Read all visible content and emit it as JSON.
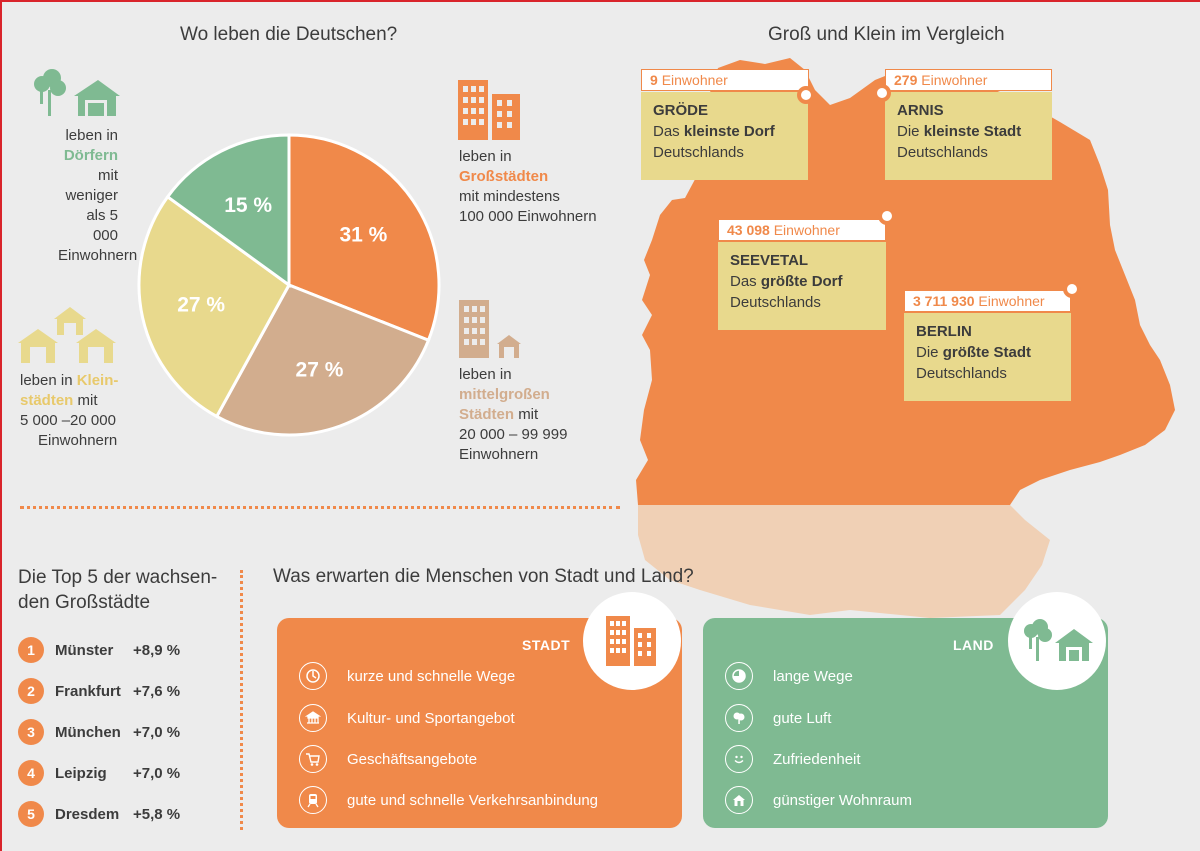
{
  "titles": {
    "pie": "Wo leben die Deutschen?",
    "map": "Groß und Klein im Vergleich",
    "top5": "Die Top 5 der wachsen-den Großstädte",
    "compare": "Was erwarten die Menschen von Stadt und Land?"
  },
  "pie_annotations": {
    "doerfer": {
      "pre": "leben in",
      "key": "Dörfern",
      "post": "mit",
      "l3": "weniger",
      "l4": "als 5 000",
      "l5": "Einwohnern"
    },
    "grossstaedte": {
      "pre": "leben in",
      "key": "Großstädten",
      "l3": "mit mindestens",
      "l4": "100 000 Einwohnern"
    },
    "kleinstaedte": {
      "pre": "leben in",
      "key1": "Klein-",
      "key2": "städten",
      "post": "mit",
      "l3": "5 000 –20 000",
      "l4": "Einwohnern"
    },
    "mittel": {
      "pre": "leben in",
      "key1": "mittelgroßen",
      "key2": "Städten",
      "post": "mit",
      "l3": "20 000 – 99 999",
      "l4": "Einwohnern"
    }
  },
  "chart_data": {
    "type": "pie",
    "title": "Wo leben die Deutschen?",
    "categories": [
      "Großstädte",
      "mittelgroße Städte",
      "Kleinstädte",
      "Dörfer"
    ],
    "values": [
      31,
      27,
      27,
      15
    ],
    "labels": [
      "31 %",
      "27 %",
      "27 %",
      "15 %"
    ],
    "colors": [
      "#f0894a",
      "#d2ad8e",
      "#e8d98d",
      "#7fba92"
    ]
  },
  "map": {
    "places": [
      {
        "pop_num": "9",
        "pop_word": "Einwohner",
        "name": "GRÖDE",
        "line_pre": "Das",
        "line_key": "kleinste Dorf",
        "line3": "Deutschlands"
      },
      {
        "pop_num": "279",
        "pop_word": "Einwohner",
        "name": "ARNIS",
        "line_pre": "Die",
        "line_key": "kleinste Stadt",
        "line3": "Deutschlands"
      },
      {
        "pop_num": "43 098",
        "pop_word": "Einwohner",
        "name": "SEEVETAL",
        "line_pre": "Das",
        "line_key": "größte Dorf",
        "line3": "Deutschlands"
      },
      {
        "pop_num": "3 711 930",
        "pop_word": "Einwohner",
        "name": "BERLIN",
        "line_pre": "Die",
        "line_key": "größte Stadt",
        "line3": "Deutschlands"
      }
    ]
  },
  "top5": [
    {
      "rank": "1",
      "city": "Münster",
      "change": "+8,9 %"
    },
    {
      "rank": "2",
      "city": "Frankfurt",
      "change": "+7,6 %"
    },
    {
      "rank": "3",
      "city": "München",
      "change": "+7,0 %"
    },
    {
      "rank": "4",
      "city": "Leipzig",
      "change": "+7,0 %"
    },
    {
      "rank": "5",
      "city": "Dresdem",
      "change": "+5,8 %"
    }
  ],
  "stadt": {
    "label": "STADT",
    "items": [
      "kurze und schnelle Wege",
      "Kultur- und Sportangebot",
      "Geschäftsangebote",
      "gute und schnelle Verkehrsanbindung"
    ]
  },
  "land": {
    "label": "LAND",
    "items": [
      "lange Wege",
      "gute Luft",
      "Zufriedenheit",
      "günstiger Wohnraum"
    ]
  },
  "colors": {
    "orange": "#f0894a",
    "tan": "#d2ad8e",
    "yellow": "#e8d98d",
    "green": "#7fba92",
    "peach": "#f0d0b5"
  }
}
